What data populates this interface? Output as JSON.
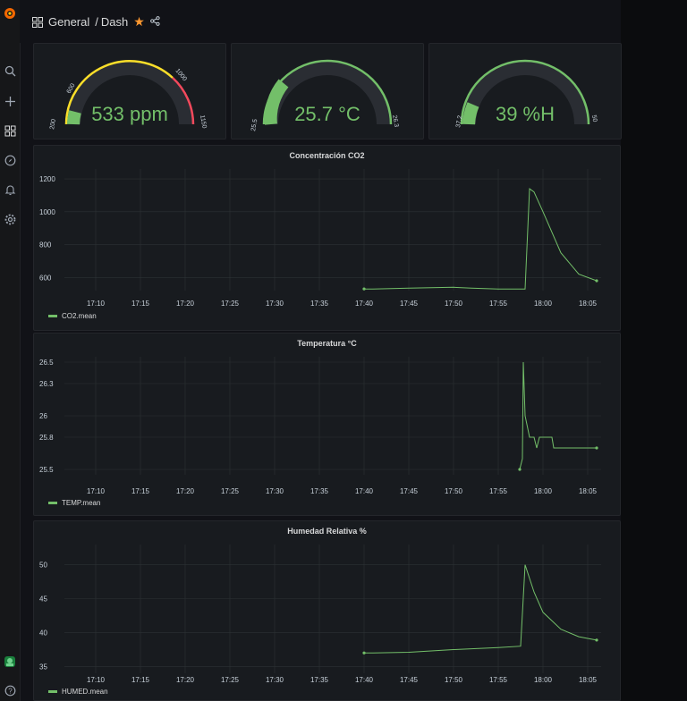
{
  "breadcrumb": {
    "folder": "General",
    "separator": "/",
    "dashboard": "Dash"
  },
  "gauges": [
    {
      "value_text": "533 ppm",
      "value": 533,
      "min": 200,
      "max": 1150,
      "ticks": [
        "200",
        "600",
        "1000",
        "1150"
      ]
    },
    {
      "value_text": "25.7 °C",
      "value": 25.7,
      "min": 25.5,
      "max": 26.3,
      "ticks": [
        "25.5",
        "26.3"
      ]
    },
    {
      "value_text": "39 %H",
      "value": 39,
      "min": 37.2,
      "max": 50,
      "ticks": [
        "37.2",
        "50"
      ]
    }
  ],
  "colors": {
    "green": "#73bf69",
    "yellow": "#fade2a",
    "red": "#f2495c",
    "panel": "#181b1f",
    "grid": "#2c3235"
  },
  "chart_data": [
    {
      "type": "line",
      "title": "Concentración CO2",
      "x_ticks": [
        "17:10",
        "17:15",
        "17:20",
        "17:25",
        "17:30",
        "17:35",
        "17:40",
        "17:45",
        "17:50",
        "17:55",
        "18:00",
        "18:05"
      ],
      "y_ticks": [
        "600",
        "800",
        "1000",
        "1200"
      ],
      "ylim": [
        520,
        1260
      ],
      "series": [
        {
          "name": "CO2.mean",
          "x": [
            "17:40",
            "17:41",
            "17:45",
            "17:50",
            "17:52",
            "17:55",
            "17:58",
            "17:58.5",
            "17:59",
            "18:00",
            "18:02",
            "18:04",
            "18:06"
          ],
          "values": [
            530,
            530,
            535,
            540,
            535,
            530,
            530,
            1140,
            1120,
            1000,
            750,
            620,
            580
          ]
        }
      ]
    },
    {
      "type": "line",
      "title": "Temperatura °C",
      "x_ticks": [
        "17:10",
        "17:15",
        "17:20",
        "17:25",
        "17:30",
        "17:35",
        "17:40",
        "17:45",
        "17:50",
        "17:55",
        "18:00",
        "18:05"
      ],
      "y_ticks": [
        "25.5",
        "25.8",
        "26",
        "26.3",
        "26.5"
      ],
      "ylim": [
        25.45,
        26.55
      ],
      "series": [
        {
          "name": "TEMP.mean",
          "x": [
            "17:57.4",
            "17:57.7",
            "17:57.8",
            "17:58",
            "17:58.5",
            "17:59",
            "17:59.3",
            "17:59.6",
            "18:00",
            "18:01",
            "18:01.2",
            "18:06"
          ],
          "values": [
            25.5,
            25.6,
            26.5,
            26.0,
            25.8,
            25.8,
            25.7,
            25.8,
            25.8,
            25.8,
            25.7,
            25.7
          ]
        }
      ]
    },
    {
      "type": "line",
      "title": "Humedad Relativa %",
      "x_ticks": [
        "17:10",
        "17:15",
        "17:20",
        "17:25",
        "17:30",
        "17:35",
        "17:40",
        "17:45",
        "17:50",
        "17:55",
        "18:00",
        "18:05"
      ],
      "y_ticks": [
        "35",
        "40",
        "45",
        "50"
      ],
      "ylim": [
        34,
        53
      ],
      "series": [
        {
          "name": "HUMED.mean",
          "x": [
            "17:40",
            "17:41",
            "17:45",
            "17:50",
            "17:55",
            "17:57.5",
            "17:58",
            "17:59",
            "18:00",
            "18:02",
            "18:04",
            "18:06"
          ],
          "values": [
            37,
            37,
            37.1,
            37.5,
            37.8,
            38,
            50,
            46,
            43,
            40.5,
            39.4,
            38.9
          ]
        }
      ]
    }
  ]
}
